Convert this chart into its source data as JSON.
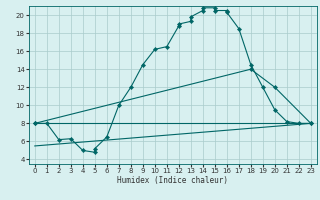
{
  "xlabel": "Humidex (Indice chaleur)",
  "bg_color": "#d8f0f0",
  "grid_color": "#aacccc",
  "line_color": "#006666",
  "xlim": [
    -0.5,
    23.5
  ],
  "ylim": [
    3.5,
    21.0
  ],
  "xticks": [
    0,
    1,
    2,
    3,
    4,
    5,
    6,
    7,
    8,
    9,
    10,
    11,
    12,
    13,
    14,
    15,
    16,
    17,
    18,
    19,
    20,
    21,
    22,
    23
  ],
  "yticks": [
    4,
    6,
    8,
    10,
    12,
    14,
    16,
    18,
    20
  ],
  "series_main": {
    "x": [
      0,
      1,
      2,
      3,
      4,
      5,
      5,
      6,
      7,
      8,
      9,
      10,
      11,
      12,
      12,
      13,
      13,
      14,
      14,
      15,
      15,
      16,
      16,
      17,
      18,
      19,
      20,
      21,
      22,
      23
    ],
    "y": [
      8,
      8,
      6.2,
      6.3,
      5.0,
      4.8,
      5.2,
      6.5,
      10.0,
      12.0,
      14.5,
      16.2,
      16.5,
      18.8,
      19.0,
      19.3,
      19.8,
      20.5,
      20.8,
      20.8,
      20.5,
      20.5,
      20.3,
      18.5,
      14.5,
      12.0,
      9.5,
      8.2,
      8.0,
      8.0
    ],
    "has_markers": true
  },
  "series_lower_flat": {
    "x": [
      0,
      23
    ],
    "y": [
      8,
      8
    ],
    "has_markers": false
  },
  "series_lower_slant": {
    "x": [
      0,
      23
    ],
    "y": [
      5.5,
      8.0
    ],
    "has_markers": false
  },
  "series_upper": {
    "x": [
      0,
      18,
      20,
      23
    ],
    "y": [
      8,
      14.0,
      12.0,
      8.0
    ],
    "has_markers": true
  }
}
